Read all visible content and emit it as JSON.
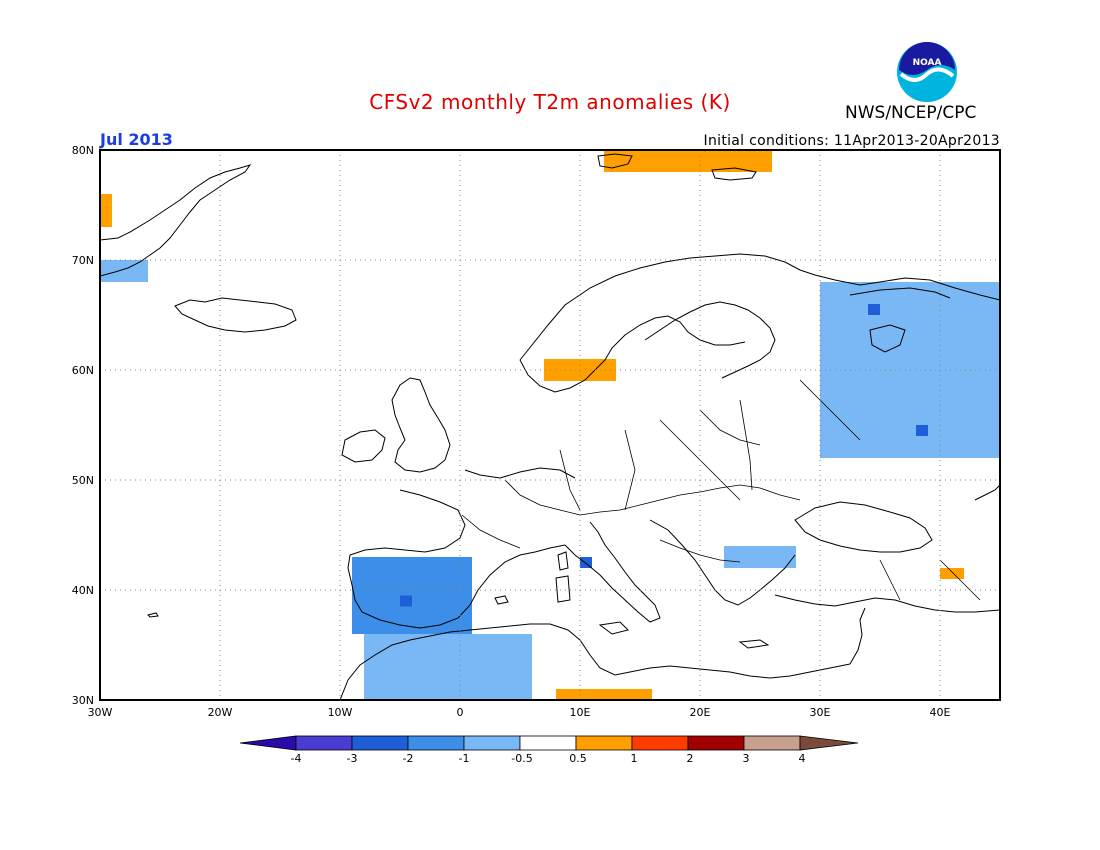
{
  "title": "CFSv2 monthly T2m anomalies (K)",
  "agency": "NWS/NCEP/CPC",
  "logo_text": "NOAA",
  "period": "Jul 2013",
  "initial_conditions": "Initial conditions: 11Apr2013-20Apr2013",
  "map": {
    "lat_labels": [
      "80N",
      "70N",
      "60N",
      "50N",
      "40N",
      "30N"
    ],
    "lon_labels": [
      "30W",
      "20W",
      "10W",
      "0",
      "10E",
      "20E",
      "30E",
      "40E"
    ],
    "extent": {
      "lon_min": -30,
      "lon_max": 45,
      "lat_min": 30,
      "lat_max": 80
    },
    "anomaly_regions": [
      {
        "region": "Greenland east coast",
        "anomaly": "0.5 to 1",
        "lon": [
          -30,
          -29
        ],
        "lat": [
          73,
          76
        ]
      },
      {
        "region": "Greenland east coast south",
        "anomaly": "-1 to -0.5",
        "lon": [
          -30,
          -26
        ],
        "lat": [
          68,
          70
        ]
      },
      {
        "region": "Svalbard",
        "anomaly": "0.5 to 1",
        "lon": [
          12,
          26
        ],
        "lat": [
          78,
          80
        ]
      },
      {
        "region": "Southern Norway",
        "anomaly": "0.5 to 1",
        "lon": [
          7,
          13
        ],
        "lat": [
          59,
          61
        ]
      },
      {
        "region": "Northwest Russia",
        "anomaly": "-1 to -0.5",
        "lon": [
          30,
          45
        ],
        "lat": [
          52,
          68
        ]
      },
      {
        "region": "Iberian Peninsula",
        "anomaly": "-2 to -1",
        "lon": [
          -9,
          1
        ],
        "lat": [
          36,
          43
        ]
      },
      {
        "region": "Northwest Africa",
        "anomaly": "-1 to -0.5",
        "lon": [
          -8,
          6
        ],
        "lat": [
          30,
          36
        ]
      },
      {
        "region": "Libya coast",
        "anomaly": "0.5 to 1",
        "lon": [
          8,
          16
        ],
        "lat": [
          30,
          31
        ]
      },
      {
        "region": "Balkans",
        "anomaly": "-1 to -0.5",
        "lon": [
          22,
          28
        ],
        "lat": [
          42,
          44
        ]
      },
      {
        "region": "Eastern Turkey",
        "anomaly": "0.5 to 1",
        "lon": [
          40,
          42
        ],
        "lat": [
          41,
          42
        ]
      }
    ]
  },
  "colorbar": {
    "labels": [
      "-4",
      "-3",
      "-2",
      "-1",
      "-0.5",
      "0.5",
      "1",
      "2",
      "3",
      "4"
    ],
    "colors": [
      "#2a0aa8",
      "#4a3cd0",
      "#1e5fd8",
      "#3d8ee8",
      "#7ab8f5",
      "#ffffff",
      "#ffa000",
      "#ff3c00",
      "#a00000",
      "#c8a090",
      "#7a4a3a"
    ]
  }
}
